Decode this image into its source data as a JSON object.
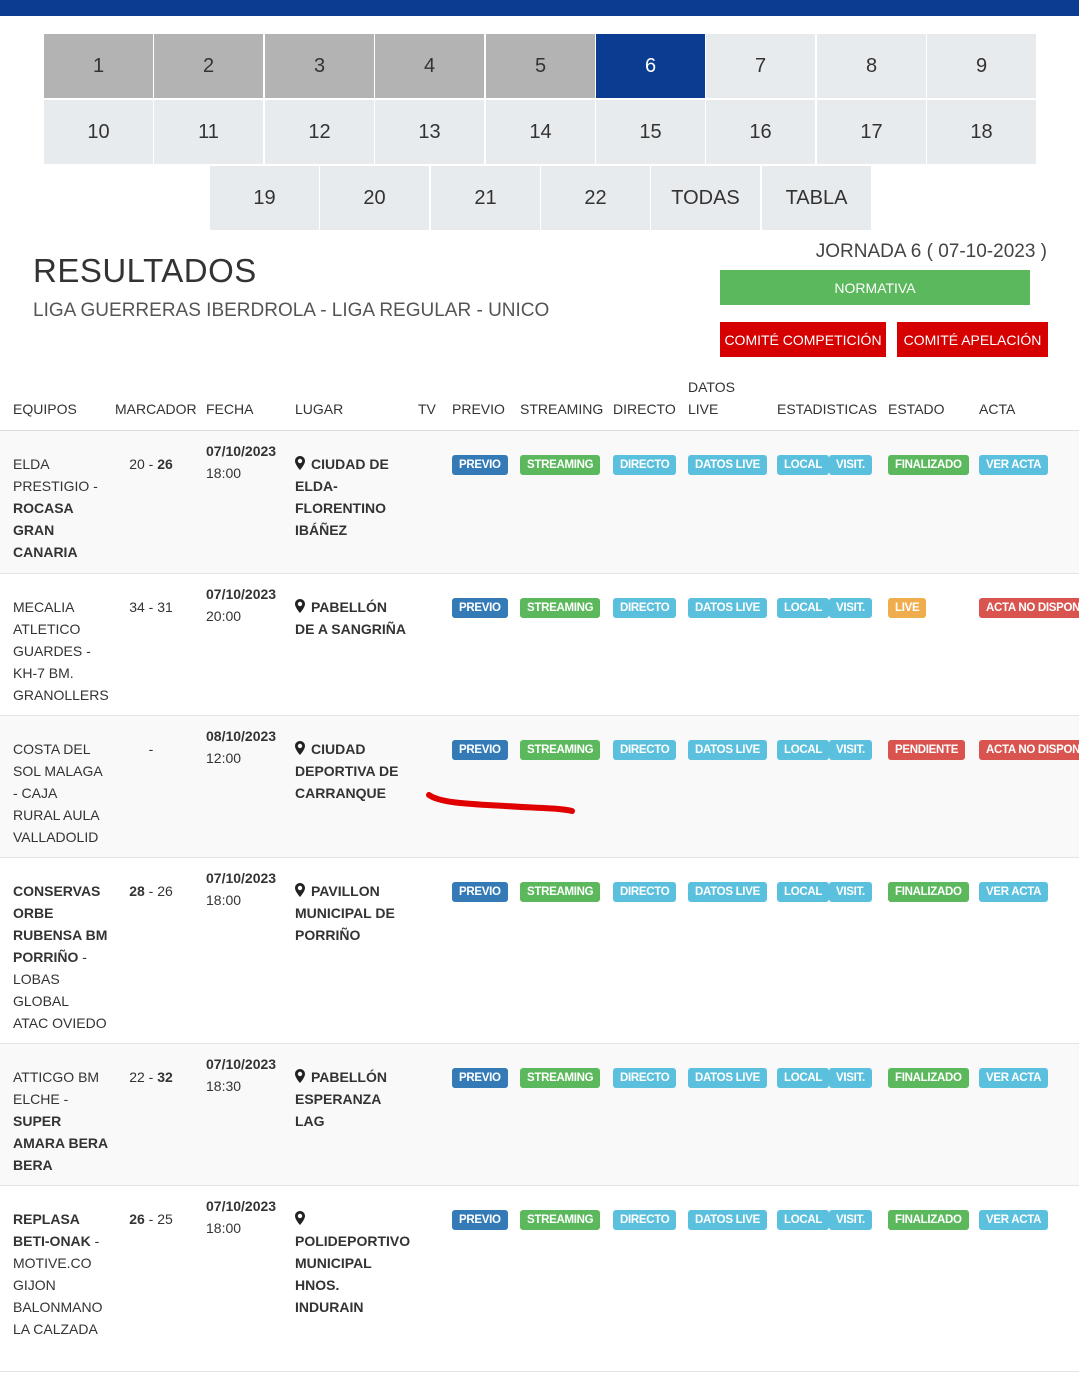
{
  "jornadas": [
    "1",
    "2",
    "3",
    "4",
    "5",
    "6",
    "7",
    "8",
    "9",
    "10",
    "11",
    "12",
    "13",
    "14",
    "15",
    "16",
    "17",
    "18",
    "19",
    "20",
    "21",
    "22",
    "TODAS",
    "TABLA"
  ],
  "jornada_active": "6",
  "title": "RESULTADOS",
  "subtitle": "LIGA GUERRERAS IBERDROLA - LIGA REGULAR - UNICO",
  "jornada_label": "JORNADA 6 ( 07-10-2023 )",
  "buttons": {
    "normativa": "NORMATIVA",
    "comite_competicion": "COMITÉ COMPETICIÓN",
    "comite_apelacion": "COMITÉ APELACIÓN"
  },
  "headers": {
    "equipos": "EQUIPOS",
    "marcador": "MARCADOR",
    "fecha": "FECHA",
    "lugar": "LUGAR",
    "tv": "TV",
    "previo": "PREVIO",
    "streaming": "STREAMING",
    "directo": "DIRECTO",
    "datos_live_1": "DATOS",
    "datos_live_2": "LIVE",
    "estadisticas": "ESTADISTICAS",
    "estado": "ESTADO",
    "acta": "ACTA"
  },
  "badges": {
    "previo": "PREVIO",
    "streaming": "STREAMING",
    "directo": "DIRECTO",
    "datos_live": "DATOS LIVE",
    "local": "LOCAL",
    "visit": "VISIT."
  },
  "matches": [
    {
      "team_lines": [
        [
          "ELDA",
          false
        ],
        [
          "PRESTIGIO -",
          false
        ],
        [
          "ROCASA",
          true
        ],
        [
          "GRAN",
          true
        ],
        [
          "CANARIA",
          true
        ]
      ],
      "score_home": "20",
      "score_sep": " - ",
      "score_away": "26",
      "winner": "away",
      "date": "07/10/2023",
      "time": "18:00",
      "venue_lines": [
        "CIUDAD DE",
        "ELDA-",
        "FLORENTINO",
        "IBÁÑEZ"
      ],
      "estado": "FINALIZADO",
      "estado_color": "#5cb85c",
      "acta": "VER ACTA",
      "acta_color": "#5bc0de"
    },
    {
      "team_lines": [
        [
          "MECALIA",
          false
        ],
        [
          "ATLETICO",
          false
        ],
        [
          "GUARDES -",
          false
        ],
        [
          "KH-7 BM.",
          false
        ],
        [
          "GRANOLLERS",
          false
        ]
      ],
      "score_home": "34",
      "score_sep": " - ",
      "score_away": "31",
      "winner": "none",
      "date": "07/10/2023",
      "time": "20:00",
      "venue_lines": [
        "PABELLÓN",
        "DE A SANGRIÑA"
      ],
      "estado": "LIVE",
      "estado_color": "#f0ad4e",
      "acta": "ACTA NO DISPONIBLE",
      "acta_color": "#d9534f"
    },
    {
      "team_lines": [
        [
          "COSTA DEL",
          false
        ],
        [
          "SOL MALAGA",
          false
        ],
        [
          "- CAJA",
          false
        ],
        [
          "RURAL AULA",
          false
        ],
        [
          "VALLADOLID",
          false
        ]
      ],
      "score_home": "",
      "score_sep": "-",
      "score_away": "",
      "winner": "none",
      "date": "08/10/2023",
      "time": "12:00",
      "venue_lines": [
        "CIUDAD",
        "DEPORTIVA DE",
        "CARRANQUE"
      ],
      "estado": "PENDIENTE",
      "estado_color": "#d9534f",
      "acta": "ACTA NO DISPONIBLE",
      "acta_color": "#d9534f"
    },
    {
      "team_lines": [
        [
          "CONSERVAS",
          true
        ],
        [
          "ORBE",
          true
        ],
        [
          "RUBENSA BM",
          true
        ],
        [
          "PORRIÑO",
          true,
          " -"
        ],
        [
          "LOBAS",
          false
        ],
        [
          "GLOBAL",
          false
        ],
        [
          "ATAC OVIEDO",
          false
        ]
      ],
      "score_home": "28",
      "score_sep": " - ",
      "score_away": "26",
      "winner": "home",
      "date": "07/10/2023",
      "time": "18:00",
      "venue_lines": [
        "PAVILLON",
        "MUNICIPAL DE",
        "PORRIÑO"
      ],
      "estado": "FINALIZADO",
      "estado_color": "#5cb85c",
      "acta": "VER ACTA",
      "acta_color": "#5bc0de"
    },
    {
      "team_lines": [
        [
          "ATTICGO BM",
          false
        ],
        [
          "ELCHE -",
          false
        ],
        [
          "SUPER",
          true
        ],
        [
          "AMARA BERA",
          true
        ],
        [
          "BERA",
          true
        ]
      ],
      "score_home": "22",
      "score_sep": " - ",
      "score_away": "32",
      "winner": "away",
      "date": "07/10/2023",
      "time": "18:30",
      "venue_lines": [
        "PABELLÓN",
        "ESPERANZA",
        "LAG"
      ],
      "estado": "FINALIZADO",
      "estado_color": "#5cb85c",
      "acta": "VER ACTA",
      "acta_color": "#5bc0de"
    },
    {
      "team_lines": [
        [
          "REPLASA",
          true
        ],
        [
          "BETI-ONAK",
          true,
          " -"
        ],
        [
          "MOTIVE.CO",
          false
        ],
        [
          "GIJON",
          false
        ],
        [
          "BALONMANO",
          false
        ],
        [
          "LA CALZADA",
          false
        ]
      ],
      "score_home": "26",
      "score_sep": " - ",
      "score_away": "25",
      "winner": "home",
      "date": "07/10/2023",
      "time": "18:00",
      "venue_lines": [
        "",
        "POLIDEPORTIVO",
        "MUNICIPAL",
        "HNOS.",
        "INDURAIN"
      ],
      "estado": "FINALIZADO",
      "estado_color": "#5cb85c",
      "acta": "VER ACTA",
      "acta_color": "#5bc0de"
    }
  ]
}
